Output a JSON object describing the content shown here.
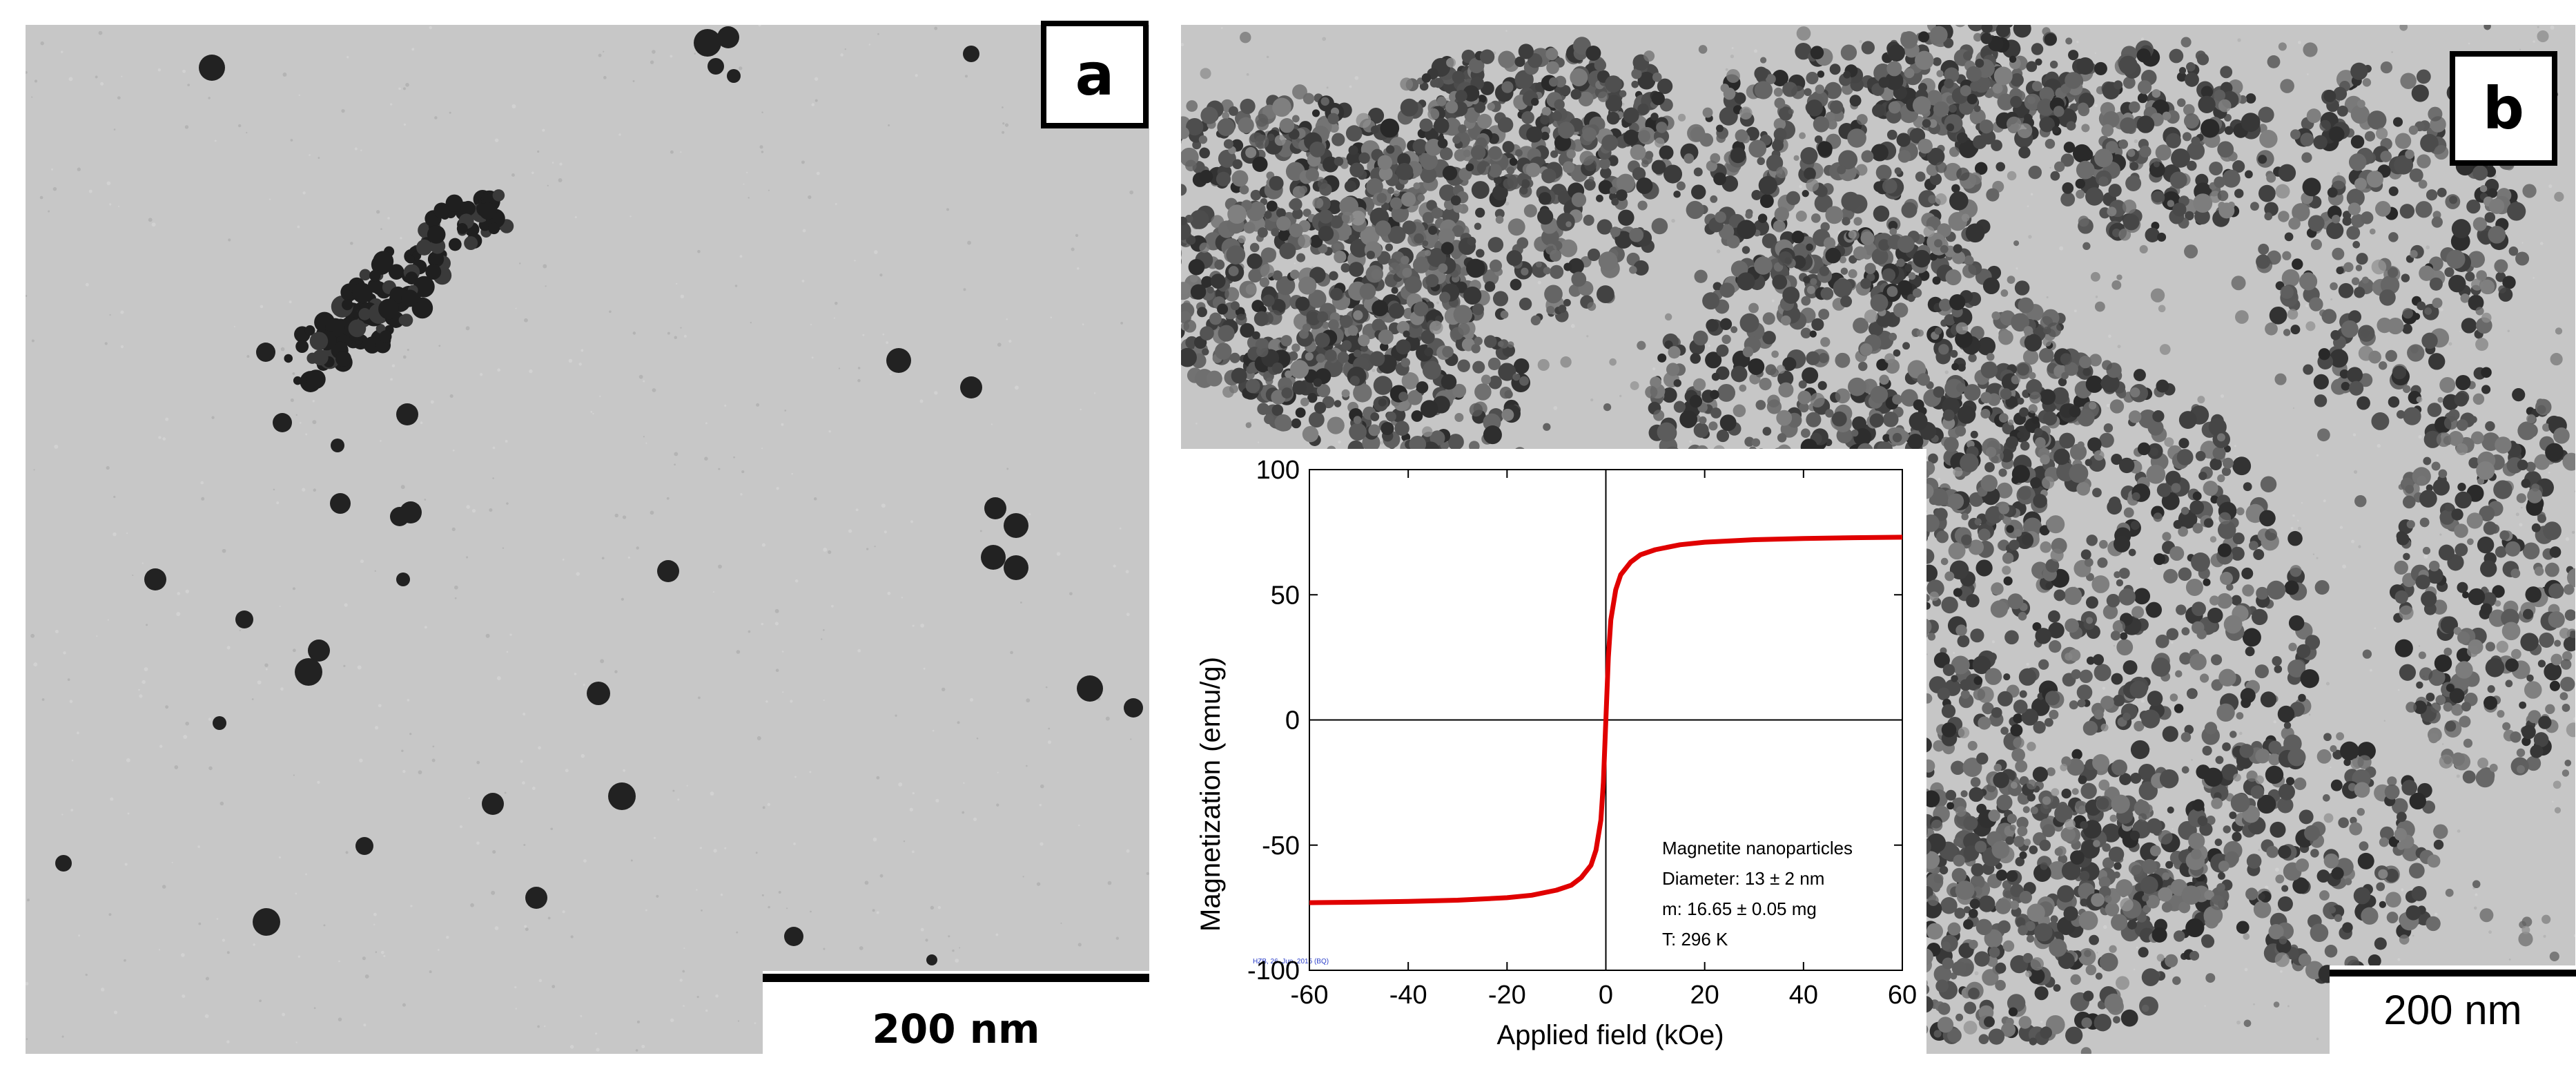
{
  "panels": {
    "a": {
      "label": "a",
      "scale_bar": "200 nm"
    },
    "b": {
      "label": "b",
      "scale_bar": "200 nm"
    }
  },
  "chart_data": {
    "type": "line",
    "title": "",
    "xlabel": "Applied field (kOe)",
    "ylabel": "Magnetization (emu/g)",
    "xlim": [
      -60,
      60
    ],
    "ylim": [
      -100,
      100
    ],
    "x_ticks": [
      "-60",
      "-40",
      "-20",
      "0",
      "20",
      "40",
      "60"
    ],
    "y_ticks": [
      "100",
      "50",
      "0",
      "-50",
      "-100"
    ],
    "grid": false,
    "series": [
      {
        "color": "#e00000",
        "x": [
          -60,
          -50,
          -40,
          -30,
          -20,
          -15,
          -10,
          -7,
          -5,
          -3,
          -2,
          -1,
          -0.5,
          0,
          0.5,
          1,
          2,
          3,
          5,
          7,
          10,
          15,
          20,
          30,
          40,
          50,
          60
        ],
        "y": [
          -73,
          -72.8,
          -72.5,
          -72,
          -71,
          -70,
          -68,
          -66,
          -63,
          -58,
          -52,
          -40,
          -25,
          0,
          25,
          40,
          52,
          58,
          63,
          66,
          68,
          70,
          71,
          72,
          72.5,
          72.8,
          73
        ]
      }
    ],
    "annotations": [
      "Magnetite nanoparticles",
      "Diameter: 13 ± 2 nm",
      "m: 16.65 ± 0.05 mg",
      "T: 296 K"
    ],
    "footer_note": "HZB, 26. Jun. 2015 (BQ)"
  }
}
